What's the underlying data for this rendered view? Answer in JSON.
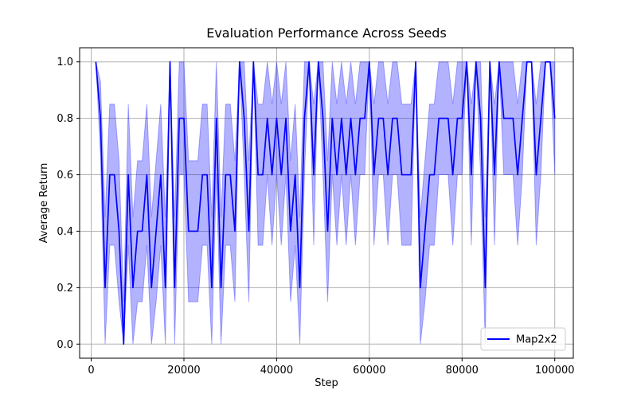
{
  "chart_data": {
    "type": "line",
    "title": "Evaluation Performance Across Seeds",
    "xlabel": "Step",
    "ylabel": "Average Return",
    "xlim": [
      -2500,
      104000
    ],
    "ylim": [
      -0.05,
      1.05
    ],
    "x_ticks": [
      0,
      20000,
      40000,
      60000,
      80000,
      100000
    ],
    "y_ticks": [
      0.0,
      0.2,
      0.4,
      0.6,
      0.8,
      1.0
    ],
    "x_tick_labels": [
      "0",
      "20000",
      "40000",
      "60000",
      "80000",
      "100000"
    ],
    "y_tick_labels": [
      "0.0",
      "0.2",
      "0.4",
      "0.6",
      "0.8",
      "1.0"
    ],
    "grid": true,
    "legend_position": "bottom-right",
    "colors": {
      "line": "#0000ff",
      "band": "#0000ff",
      "grid": "#b0b0b0"
    },
    "series": [
      {
        "name": "Map2x2",
        "x": [
          1000,
          2000,
          3000,
          4000,
          5000,
          6000,
          7000,
          8000,
          9000,
          10000,
          11000,
          12000,
          13000,
          14000,
          15000,
          16000,
          17000,
          18000,
          19000,
          20000,
          21000,
          22000,
          23000,
          24000,
          25000,
          26000,
          27000,
          28000,
          29000,
          30000,
          31000,
          32000,
          33000,
          34000,
          35000,
          36000,
          37000,
          38000,
          39000,
          40000,
          41000,
          42000,
          43000,
          44000,
          45000,
          46000,
          47000,
          48000,
          49000,
          50000,
          51000,
          52000,
          53000,
          54000,
          55000,
          56000,
          57000,
          58000,
          59000,
          60000,
          61000,
          62000,
          63000,
          64000,
          65000,
          66000,
          67000,
          68000,
          69000,
          70000,
          71000,
          72000,
          73000,
          74000,
          75000,
          76000,
          77000,
          78000,
          79000,
          80000,
          81000,
          82000,
          83000,
          84000,
          85000,
          86000,
          87000,
          88000,
          89000,
          90000,
          91000,
          92000,
          93000,
          94000,
          95000,
          96000,
          97000,
          98000,
          99000,
          100000
        ],
        "mean": [
          1.0,
          0.8,
          0.2,
          0.6,
          0.6,
          0.4,
          0.0,
          0.6,
          0.2,
          0.4,
          0.4,
          0.6,
          0.2,
          0.4,
          0.6,
          0.2,
          1.0,
          0.2,
          0.8,
          0.8,
          0.4,
          0.4,
          0.4,
          0.6,
          0.6,
          0.2,
          0.8,
          0.2,
          0.6,
          0.6,
          0.4,
          1.0,
          0.8,
          0.4,
          1.0,
          0.6,
          0.6,
          0.8,
          0.6,
          0.8,
          0.6,
          0.8,
          0.4,
          0.6,
          0.2,
          0.8,
          1.0,
          0.6,
          1.0,
          0.8,
          0.4,
          0.8,
          0.6,
          0.8,
          0.6,
          0.8,
          0.6,
          0.8,
          0.8,
          1.0,
          0.6,
          0.8,
          0.8,
          0.6,
          0.8,
          0.8,
          0.6,
          0.6,
          0.6,
          1.0,
          0.2,
          0.4,
          0.6,
          0.6,
          0.8,
          0.8,
          0.8,
          0.6,
          0.8,
          0.8,
          1.0,
          0.6,
          1.0,
          0.8,
          0.2,
          1.0,
          0.6,
          1.0,
          0.8,
          0.8,
          0.8,
          0.6,
          0.8,
          1.0,
          1.0,
          0.6,
          0.8,
          1.0,
          1.0,
          0.8
        ],
        "upper": [
          1.0,
          0.93,
          0.45,
          0.85,
          0.85,
          0.65,
          0.15,
          0.85,
          0.45,
          0.65,
          0.65,
          0.85,
          0.45,
          0.65,
          0.85,
          0.45,
          1.0,
          0.45,
          1.0,
          1.0,
          0.65,
          0.65,
          0.65,
          0.85,
          0.85,
          0.45,
          1.0,
          0.45,
          0.85,
          0.85,
          0.65,
          1.0,
          1.0,
          0.65,
          1.0,
          0.85,
          0.85,
          1.0,
          0.85,
          1.0,
          0.85,
          1.0,
          0.65,
          0.85,
          0.45,
          1.0,
          1.0,
          0.85,
          1.0,
          1.0,
          0.65,
          1.0,
          0.85,
          1.0,
          0.85,
          1.0,
          0.85,
          1.0,
          1.0,
          1.0,
          0.85,
          1.0,
          1.0,
          0.85,
          1.0,
          1.0,
          0.85,
          0.85,
          0.85,
          1.0,
          0.45,
          0.65,
          0.85,
          0.85,
          1.0,
          1.0,
          1.0,
          0.85,
          1.0,
          1.0,
          1.0,
          0.85,
          1.0,
          1.0,
          0.45,
          1.0,
          0.85,
          1.0,
          1.0,
          1.0,
          1.0,
          0.85,
          1.0,
          1.0,
          1.0,
          0.85,
          1.0,
          1.0,
          1.0,
          1.0
        ],
        "lower": [
          1.0,
          0.67,
          0.0,
          0.35,
          0.35,
          0.15,
          0.0,
          0.35,
          0.0,
          0.15,
          0.15,
          0.35,
          0.0,
          0.15,
          0.35,
          0.0,
          1.0,
          0.0,
          0.6,
          0.6,
          0.15,
          0.15,
          0.15,
          0.35,
          0.35,
          0.0,
          0.6,
          0.0,
          0.35,
          0.35,
          0.15,
          1.0,
          0.6,
          0.15,
          1.0,
          0.35,
          0.35,
          0.6,
          0.35,
          0.6,
          0.35,
          0.6,
          0.15,
          0.35,
          0.0,
          0.6,
          1.0,
          0.35,
          1.0,
          0.6,
          0.15,
          0.6,
          0.35,
          0.6,
          0.35,
          0.6,
          0.35,
          0.6,
          0.6,
          1.0,
          0.35,
          0.6,
          0.6,
          0.35,
          0.6,
          0.6,
          0.35,
          0.35,
          0.35,
          1.0,
          0.0,
          0.15,
          0.35,
          0.35,
          0.6,
          0.6,
          0.6,
          0.35,
          0.6,
          0.6,
          1.0,
          0.35,
          1.0,
          0.6,
          0.0,
          1.0,
          0.35,
          1.0,
          0.6,
          0.6,
          0.6,
          0.35,
          0.6,
          1.0,
          1.0,
          0.35,
          0.6,
          1.0,
          1.0,
          0.6
        ]
      }
    ]
  }
}
